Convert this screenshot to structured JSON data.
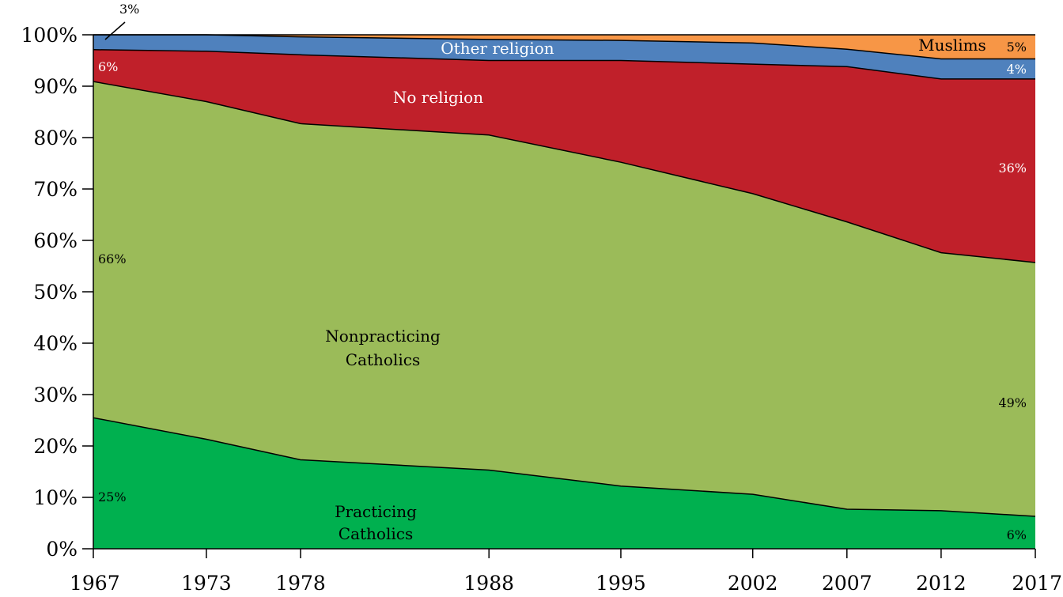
{
  "chart_data": {
    "type": "area",
    "stacked": true,
    "normalized": true,
    "x": [
      "1967",
      "1973",
      "1978",
      "1988",
      "1995",
      "2002",
      "2007",
      "2012",
      "2017"
    ],
    "ylim": [
      0,
      100
    ],
    "y_ticks": [
      "0%",
      "10%",
      "20%",
      "30%",
      "40%",
      "50%",
      "60%",
      "70%",
      "80%",
      "90%",
      "100%"
    ],
    "grid": false,
    "series": [
      {
        "name": "Practicing Catholics",
        "label_lines": [
          "Practicing",
          "Catholics"
        ],
        "color": "#00b04f",
        "values": [
          25.5,
          21.3,
          17.3,
          15.3,
          12.2,
          10.6,
          7.7,
          7.4,
          6.3
        ]
      },
      {
        "name": "Nonpracticing Catholics",
        "label_lines": [
          "Nonpracticing",
          "Catholics"
        ],
        "color": "#9bbb59",
        "values": [
          65.4,
          65.7,
          65.4,
          65.2,
          63.0,
          58.5,
          55.9,
          50.2,
          49.4
        ]
      },
      {
        "name": "No religion",
        "label_lines": [
          "No religion"
        ],
        "color": "#c0202a",
        "values": [
          6.2,
          9.8,
          13.4,
          14.5,
          19.8,
          25.2,
          30.2,
          33.8,
          35.7
        ]
      },
      {
        "name": "Other religion",
        "label_lines": [
          "Other religion"
        ],
        "color": "#4f81bd",
        "values": [
          2.9,
          3.2,
          3.5,
          4.1,
          3.9,
          4.1,
          3.4,
          3.9,
          3.9
        ]
      },
      {
        "name": "Muslims",
        "label_lines": [
          "Muslims"
        ],
        "color": "#f79646",
        "values": [
          0,
          0,
          0.4,
          0.9,
          1.1,
          1.6,
          2.8,
          4.7,
          4.7
        ]
      }
    ],
    "annotations": [
      "3%",
      "6%",
      "66%",
      "25%",
      "36%",
      "49%",
      "6%",
      "4%",
      "5%"
    ]
  }
}
